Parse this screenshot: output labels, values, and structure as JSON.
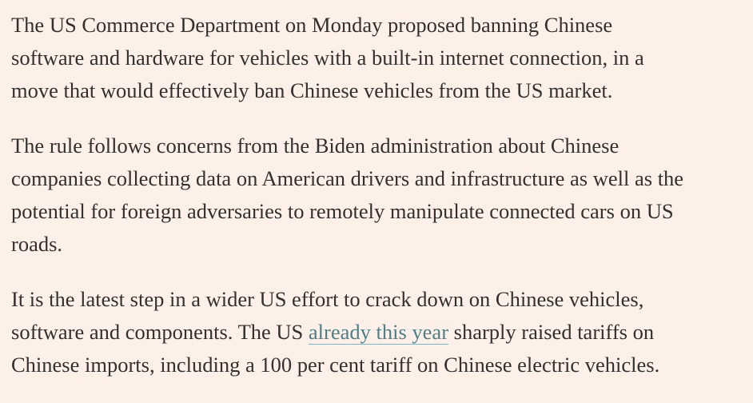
{
  "article": {
    "paragraphs": [
      {
        "lines": [
          "The US Commerce Department on Monday proposed banning Chinese",
          "software and hardware for vehicles with a built-in internet connection, in a",
          "move that would effectively ban Chinese vehicles from the US market."
        ]
      },
      {
        "lines": [
          "The rule follows concerns from the Biden administration about Chinese",
          "companies collecting data on American drivers and infrastructure as well as the",
          "potential for foreign adversaries to remotely manipulate connected cars on US",
          "roads."
        ]
      },
      {
        "line1": "It is the latest step in a wider US effort to crack down on Chinese vehicles,",
        "line2_before": "software and components. The US ",
        "link_text": "already this year",
        "line2_after": " sharply raised tariffs on",
        "line3": "Chinese imports, including a 100 per cent tariff on Chinese electric vehicles."
      }
    ]
  },
  "colors": {
    "background": "#fdf0e8",
    "text": "#33302e",
    "link": "#4d7f87"
  }
}
